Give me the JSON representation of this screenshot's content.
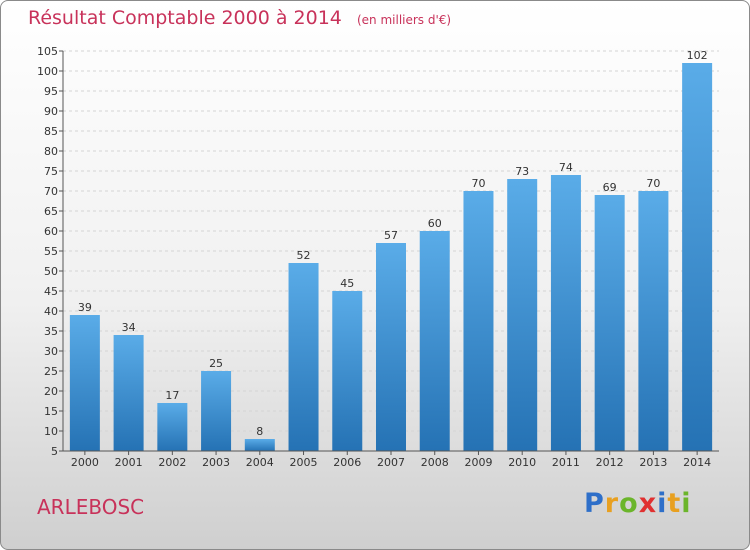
{
  "header": {
    "title": "Résultat Comptable 2000 à 2014",
    "subtitle": "(en milliers d'€)"
  },
  "commune": "ARLEBOSC",
  "logo": {
    "text": "Proxiti",
    "colors": [
      "#2e6fc9",
      "#e8a020",
      "#6bb52b",
      "#e03030",
      "#2e6fc9",
      "#e8a020",
      "#6bb52b"
    ]
  },
  "colors": {
    "bar_top": "#5aace8",
    "bar_bottom": "#2572b4",
    "title": "#c8325a"
  },
  "chart_data": {
    "type": "bar",
    "categories": [
      "2000",
      "2001",
      "2002",
      "2003",
      "2004",
      "2005",
      "2006",
      "2007",
      "2008",
      "2009",
      "2010",
      "2011",
      "2012",
      "2013",
      "2014"
    ],
    "values": [
      39,
      34,
      17,
      25,
      8,
      52,
      45,
      57,
      60,
      70,
      73,
      74,
      69,
      70,
      102
    ],
    "ylim": [
      5,
      105
    ],
    "yticks": [
      5,
      10,
      15,
      20,
      25,
      30,
      35,
      40,
      45,
      50,
      55,
      60,
      65,
      70,
      75,
      80,
      85,
      90,
      95,
      100,
      105
    ],
    "grid": true
  }
}
